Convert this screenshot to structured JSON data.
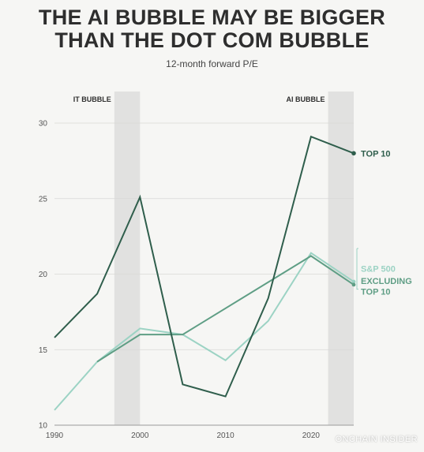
{
  "header": {
    "title_line1": "THE AI BUBBLE MAY BE BIGGER",
    "title_line2": "THAN THE DOT COM BUBBLE",
    "subtitle": "12-month forward P/E"
  },
  "watermark": "ONCHAIN INSIDER",
  "chart_data": {
    "type": "line",
    "title": "THE AI BUBBLE MAY BE BIGGER THAN THE DOT COM BUBBLE",
    "subtitle": "12-month forward P/E",
    "xlabel": "",
    "ylabel": "",
    "xlim": [
      1990,
      2025
    ],
    "ylim": [
      10,
      30
    ],
    "xticks": [
      1990,
      2000,
      2010,
      2020
    ],
    "yticks": [
      10,
      15,
      20,
      25,
      30
    ],
    "grid": true,
    "shaded_regions": [
      {
        "label": "IT BUBBLE",
        "from": 1997,
        "to": 2000
      },
      {
        "label": "AI BUBBLE",
        "from": 2022,
        "to": 2025
      }
    ],
    "series": [
      {
        "name": "TOP 10",
        "color": "#2f5e4c",
        "points": [
          [
            1990,
            15.8
          ],
          [
            1995,
            18.7
          ],
          [
            2000,
            25.1
          ],
          [
            2005,
            12.7
          ],
          [
            2010,
            11.9
          ],
          [
            2015,
            18.4
          ],
          [
            2020,
            29.1
          ],
          [
            2025,
            28.0
          ]
        ]
      },
      {
        "name": "S&P 500",
        "color": "#9cd3c4",
        "points": [
          [
            1990,
            11.0
          ],
          [
            1995,
            14.2
          ],
          [
            2000,
            16.4
          ],
          [
            2005,
            16.0
          ],
          [
            2010,
            14.3
          ],
          [
            2015,
            16.9
          ],
          [
            2020,
            21.4
          ],
          [
            2025,
            19.5
          ]
        ]
      },
      {
        "name": "EXCLUDING TOP 10",
        "color": "#5f9e85",
        "points": [
          [
            1995,
            14.2
          ],
          [
            2000,
            16.0
          ],
          [
            2005,
            16.0
          ],
          [
            2020,
            21.2
          ],
          [
            2025,
            19.3
          ]
        ]
      }
    ],
    "label_lines": {
      "top10": "TOP 10",
      "sp500": "S&P 500",
      "excl1": "EXCLUDING",
      "excl2": "TOP 10"
    }
  }
}
